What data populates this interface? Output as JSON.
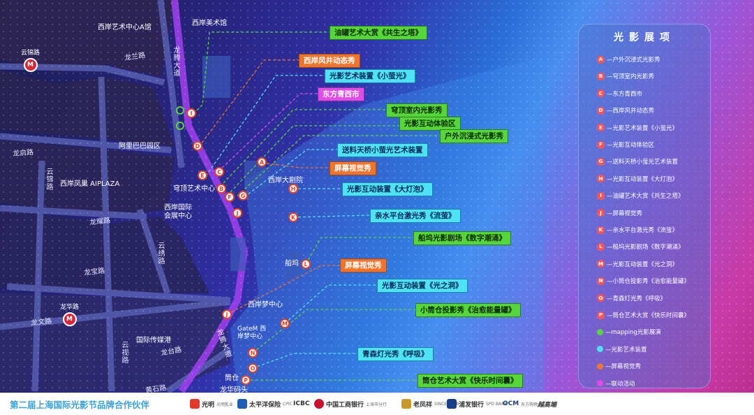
{
  "map": {
    "places": [
      {
        "id": "west-bund-art-center-a",
        "label": "西岸艺术中心A馆"
      },
      {
        "id": "west-bund-museum",
        "label": "西岸美术馆"
      },
      {
        "id": "alibaba-park",
        "label": "阿里巴巴园区"
      },
      {
        "id": "west-bund-aiplaza",
        "label": "西岸凤巢 AIPLAZA"
      },
      {
        "id": "dome-art-center",
        "label": "穹顶艺术中心"
      },
      {
        "id": "west-bund-theatre",
        "label": "西岸大剧院"
      },
      {
        "id": "west-bund-intl-convention",
        "label": "西岸国际会展中心"
      },
      {
        "id": "west-bund-dream-center",
        "label": "西岸梦中心"
      },
      {
        "id": "gatem",
        "label": "GateM 西岸梦中心"
      },
      {
        "id": "intl-media-port",
        "label": "国际传媒港"
      },
      {
        "id": "boat-dock",
        "label": "船坞"
      },
      {
        "id": "silo",
        "label": "筒仓"
      },
      {
        "id": "longhua-dock",
        "label": "龙华码头"
      }
    ],
    "streets": [
      {
        "id": "longlan-rd",
        "label": "龙兰路"
      },
      {
        "id": "longteng-ave-north",
        "label": "龙腾大道"
      },
      {
        "id": "longqi-rd",
        "label": "龙启路"
      },
      {
        "id": "yunjin-rd-west",
        "label": "云锦路"
      },
      {
        "id": "longyao-rd",
        "label": "龙耀路"
      },
      {
        "id": "longbao-rd",
        "label": "龙宝路"
      },
      {
        "id": "yunxiu-rd",
        "label": "云绣路"
      },
      {
        "id": "longwen-rd",
        "label": "龙文路"
      },
      {
        "id": "yunshi-rd",
        "label": "云视路"
      },
      {
        "id": "longtai-rd",
        "label": "龙台路"
      },
      {
        "id": "longteng-ave-south",
        "label": "龙腾大道"
      },
      {
        "id": "huangshi-rd",
        "label": "黄石路"
      }
    ],
    "metro_stations": [
      {
        "id": "yunjin-rd-station",
        "label": "云锦路"
      },
      {
        "id": "longhua-station",
        "label": "龙华路"
      }
    ],
    "markers": [
      "A",
      "B",
      "C",
      "D",
      "E",
      "F",
      "G",
      "H",
      "I",
      "J",
      "K",
      "L",
      "M",
      "N",
      "O",
      "P",
      "J"
    ],
    "callouts": [
      {
        "id": "A",
        "text": "油罐艺术大赏《共生之塔》",
        "type": "green"
      },
      {
        "id": "B",
        "text": "西岸风井动态秀",
        "type": "orange"
      },
      {
        "id": "C",
        "text": "光影艺术装置《小萤光》",
        "type": "cyan"
      },
      {
        "id": "D",
        "text": "东方青西市",
        "type": "magenta"
      },
      {
        "id": "E",
        "text": "穹顶室内光影秀",
        "type": "green"
      },
      {
        "id": "F",
        "text": "光影互动体验区",
        "type": "green"
      },
      {
        "id": "G",
        "text": "户外沉浸式光影秀",
        "type": "green"
      },
      {
        "id": "H",
        "text": "送料天桥小萤光艺术装置",
        "type": "cyan"
      },
      {
        "id": "I",
        "text": "屏幕视觉秀",
        "type": "orange"
      },
      {
        "id": "J",
        "text": "光影互动装置《大灯泡》",
        "type": "cyan"
      },
      {
        "id": "K",
        "text": "亲水平台激光秀《流萤》",
        "type": "cyan"
      },
      {
        "id": "L",
        "text": "船坞光影剧场《数字潮涌》",
        "type": "green"
      },
      {
        "id": "M",
        "text": "屏幕视觉秀",
        "type": "orange"
      },
      {
        "id": "N",
        "text": "光影互动装置《光之洞》",
        "type": "cyan"
      },
      {
        "id": "O",
        "text": "小筒仓投影秀《治愈能量罐》",
        "type": "green"
      },
      {
        "id": "P",
        "text": "青森灯光秀《呼吸》",
        "type": "cyan"
      },
      {
        "id": "Q",
        "text": "筒仓艺术大赏《快乐时间囊》",
        "type": "green"
      }
    ]
  },
  "legend": {
    "title": "光影展项",
    "items": [
      {
        "key": "A",
        "text": "—户外沉浸式光影秀"
      },
      {
        "key": "B",
        "text": "—穹顶室内光影秀"
      },
      {
        "key": "C",
        "text": "—东方青西市"
      },
      {
        "key": "D",
        "text": "—西岸风井动态秀"
      },
      {
        "key": "E",
        "text": "—光影艺术装置《小萤光》"
      },
      {
        "key": "F",
        "text": "—光影互动体验区"
      },
      {
        "key": "G",
        "text": "—送料天桥小萤光艺术装置"
      },
      {
        "key": "H",
        "text": "—光影互动装置《大灯泡》"
      },
      {
        "key": "I",
        "text": "—油罐艺术大赏《共生之塔》"
      },
      {
        "key": "J",
        "text": "—屏幕视觉秀"
      },
      {
        "key": "K",
        "text": "—亲水平台激光秀《流萤》"
      },
      {
        "key": "L",
        "text": "—船坞光影剧场《数字潮涌》"
      },
      {
        "key": "M",
        "text": "—光影互动装置《光之洞》"
      },
      {
        "key": "N",
        "text": "—小筒仓投影秀《治愈能量罐》"
      },
      {
        "key": "O",
        "text": "—青森灯光秀《呼吸》"
      },
      {
        "key": "P",
        "text": "—筒仓艺术大赏《快乐时间囊》"
      }
    ],
    "categories": [
      {
        "text": "—mapping光影展演",
        "color": "#57d63c"
      },
      {
        "text": "—光影艺术装置",
        "color": "#4fe2f4"
      },
      {
        "text": "—屏幕视觉秀",
        "color": "#f0742c"
      },
      {
        "text": "—联动活动",
        "color": "#e14be6"
      }
    ]
  },
  "footer": {
    "title": "第二届上海国际光影节品牌合作伙伴",
    "sponsors": [
      {
        "name": "光明",
        "sub": "光明乳业",
        "color": "#e23a2a"
      },
      {
        "name": "太平洋保险",
        "sub": "CPIC",
        "color": "#1e5fb4"
      },
      {
        "name": "ICBC",
        "sub": "",
        "color": "#c8102e"
      },
      {
        "name": "中国工商银行",
        "sub": "上海市分行",
        "color": "#c8102e"
      },
      {
        "name": "老凤祥",
        "sub": "SINCE 1848",
        "color": "#c89a2a"
      },
      {
        "name": "浦发银行",
        "sub": "SPD BANK",
        "color": "#1a3f8a"
      },
      {
        "name": "OCM",
        "sub": "东方购物",
        "color": "#1a3f8a"
      },
      {
        "name": "越高端",
        "sub": "",
        "color": "#333333"
      }
    ]
  }
}
